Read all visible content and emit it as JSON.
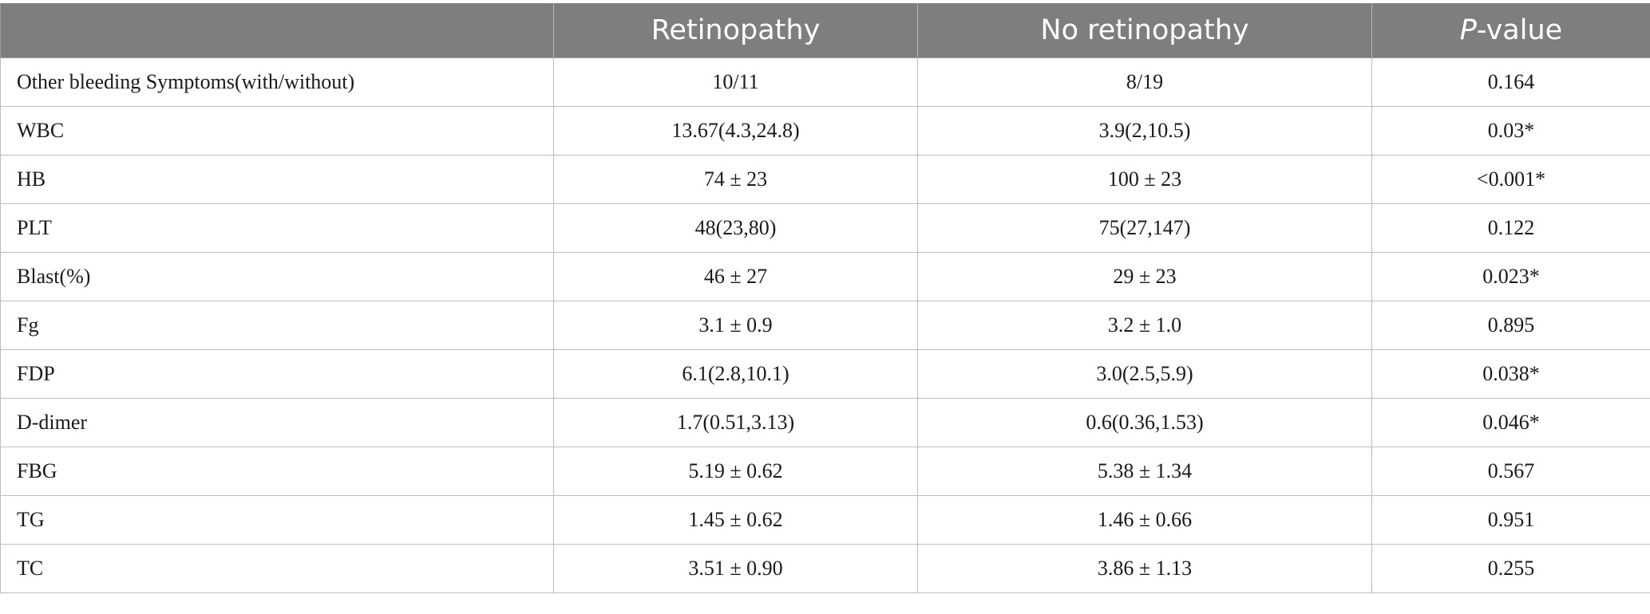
{
  "header": {
    "col0": "",
    "col1": "Retinopathy",
    "col2": "No retinopathy",
    "col3_italic": "P",
    "col3_rest": "-value"
  },
  "rows": [
    {
      "label": "Other bleeding Symptoms(with/without)",
      "retinopathy": "10/11",
      "no_retinopathy": "8/19",
      "p_value": "0.164"
    },
    {
      "label": "WBC",
      "retinopathy": "13.67(4.3,24.8)",
      "no_retinopathy": "3.9(2,10.5)",
      "p_value": "0.03*"
    },
    {
      "label": "HB",
      "retinopathy": "74 ± 23",
      "no_retinopathy": "100 ± 23",
      "p_value": "<0.001*"
    },
    {
      "label": "PLT",
      "retinopathy": "48(23,80)",
      "no_retinopathy": "75(27,147)",
      "p_value": "0.122"
    },
    {
      "label": "Blast(%)",
      "retinopathy": "46 ± 27",
      "no_retinopathy": "29 ± 23",
      "p_value": "0.023*"
    },
    {
      "label": "Fg",
      "retinopathy": "3.1 ± 0.9",
      "no_retinopathy": "3.2 ± 1.0",
      "p_value": "0.895"
    },
    {
      "label": "FDP",
      "retinopathy": "6.1(2.8,10.1)",
      "no_retinopathy": "3.0(2.5,5.9)",
      "p_value": "0.038*"
    },
    {
      "label": "D-dimer",
      "retinopathy": "1.7(0.51,3.13)",
      "no_retinopathy": "0.6(0.36,1.53)",
      "p_value": "0.046*"
    },
    {
      "label": "FBG",
      "retinopathy": "5.19 ± 0.62",
      "no_retinopathy": "5.38 ± 1.34",
      "p_value": "0.567"
    },
    {
      "label": "TG",
      "retinopathy": "1.45 ± 0.62",
      "no_retinopathy": "1.46 ± 0.66",
      "p_value": "0.951"
    },
    {
      "label": "TC",
      "retinopathy": "3.51 ± 0.90",
      "no_retinopathy": "3.86 ± 1.13",
      "p_value": "0.255"
    }
  ]
}
